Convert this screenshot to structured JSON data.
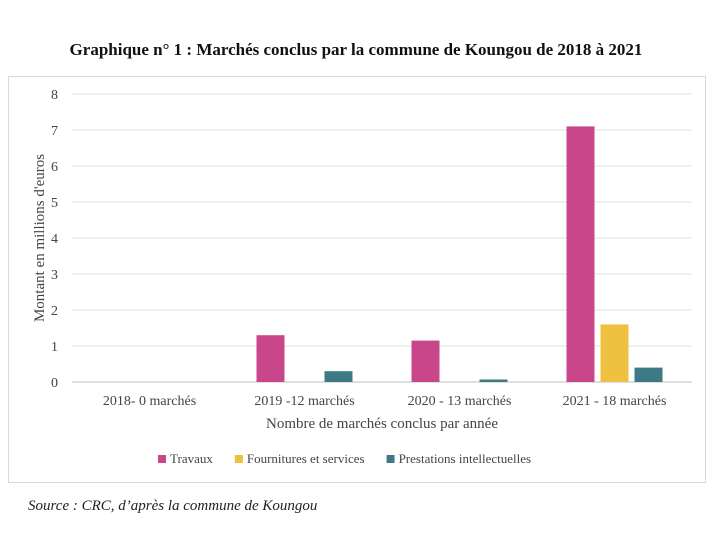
{
  "chart_data": {
    "type": "bar",
    "title": "Graphique n° 1 :  Marchés conclus par la commune de Koungou de 2018 à 2021",
    "categories": [
      "2018- 0 marchés",
      "2019 -12 marchés",
      "2020 - 13 marchés",
      "2021 - 18 marchés"
    ],
    "series": [
      {
        "name": "Travaux",
        "color": "#c9468a",
        "values": [
          0,
          1.3,
          1.15,
          7.1
        ]
      },
      {
        "name": "Fournitures et services",
        "color": "#f0c040",
        "values": [
          0,
          0,
          0,
          1.6
        ]
      },
      {
        "name": "Prestations intellectuelles",
        "color": "#3e7a85",
        "values": [
          0,
          0.3,
          0.07,
          0.4
        ]
      }
    ],
    "xlabel": "Nombre de marchés conclus par année",
    "ylabel": "Montant en millions d'euros",
    "ylim": [
      0,
      8
    ],
    "yticks": [
      0,
      1,
      2,
      3,
      4,
      5,
      6,
      7,
      8
    ],
    "grid": true,
    "legend": "bottom"
  },
  "source": "Source : CRC, d’après la commune de Koungou"
}
